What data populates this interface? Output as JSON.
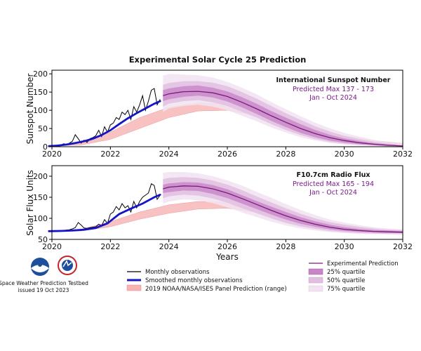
{
  "figure": {
    "title": "Experimental Solar Cycle 25 Prediction",
    "xlabel": "Years",
    "footer": {
      "line1": "Space Weather Prediction Testbed",
      "line2": "issued 19 Oct 2023"
    },
    "legend": {
      "monthly": "Monthly observations",
      "smoothed": "Smoothed monthly observations",
      "panel": "2019 NOAA/NASA/ISES Panel Prediction (range)",
      "experimental": "Experimental Prediction",
      "q25": "25% quartile",
      "q50": "50% quartile",
      "q75": "75% quartile"
    },
    "colors": {
      "monthly": "#000000",
      "smoothed": "#1515c8",
      "panel_fill": "#f7b3b3",
      "experimental": "#7a1a7a",
      "q25": "#c886c8",
      "q50": "#e0bfe0",
      "q75": "#f2e3f2"
    }
  },
  "chart_data": [
    {
      "type": "line",
      "ylabel": "Sunspot Number",
      "xlim": [
        2020,
        2032
      ],
      "ylim": [
        0,
        210
      ],
      "xticks": [
        2020,
        2022,
        2024,
        2026,
        2028,
        2030,
        2032
      ],
      "yticks": [
        0,
        50,
        100,
        150,
        200
      ],
      "annotation": {
        "heading": "International Sunspot Number",
        "line1": "Predicted Max 137 - 173",
        "line2": "Jan - Oct 2024"
      },
      "monthly": {
        "x": [
          2019.9,
          2020.0,
          2020.1,
          2020.2,
          2020.3,
          2020.4,
          2020.5,
          2020.6,
          2020.7,
          2020.8,
          2020.9,
          2021.0,
          2021.1,
          2021.2,
          2021.3,
          2021.4,
          2021.5,
          2021.6,
          2021.7,
          2021.8,
          2021.9,
          2022.0,
          2022.1,
          2022.2,
          2022.3,
          2022.4,
          2022.5,
          2022.6,
          2022.7,
          2022.8,
          2022.9,
          2023.0,
          2023.1,
          2023.2,
          2023.3,
          2023.4,
          2023.5,
          2023.6,
          2023.7
        ],
        "y": [
          1,
          3,
          2,
          5,
          4,
          8,
          6,
          10,
          15,
          33,
          22,
          10,
          18,
          12,
          22,
          25,
          30,
          45,
          28,
          55,
          40,
          60,
          65,
          80,
          75,
          95,
          88,
          100,
          75,
          110,
          95,
          115,
          140,
          100,
          125,
          155,
          160,
          115,
          130
        ]
      },
      "smoothed": {
        "x": [
          2019.9,
          2020.2,
          2020.5,
          2020.8,
          2021.1,
          2021.4,
          2021.7,
          2022.0,
          2022.3,
          2022.6,
          2022.9,
          2023.2,
          2023.5,
          2023.7
        ],
        "y": [
          1.5,
          3,
          6,
          10,
          15,
          22,
          32,
          45,
          62,
          78,
          92,
          105,
          118,
          125
        ]
      },
      "panel_range": {
        "x": [
          2020.0,
          2021.0,
          2022.0,
          2023.0,
          2024.0,
          2025.0,
          2026.0,
          2027.0,
          2028.0,
          2029.0,
          2030.0,
          2031.0,
          2032.0
        ],
        "lower": [
          2,
          5,
          20,
          50,
          80,
          98,
          100,
          85,
          60,
          37,
          20,
          10,
          5
        ],
        "upper": [
          3,
          12,
          40,
          80,
          108,
          120,
          118,
          100,
          75,
          50,
          30,
          17,
          9
        ]
      },
      "experimental": {
        "x": [
          2023.8,
          2024.0,
          2024.5,
          2025.0,
          2025.5,
          2026.0,
          2026.5,
          2027.0,
          2027.5,
          2028.0,
          2028.5,
          2029.0,
          2029.5,
          2030.0,
          2030.5,
          2031.0,
          2031.5,
          2032.0
        ],
        "y": [
          140,
          145,
          151,
          152,
          148,
          138,
          122,
          104,
          85,
          67,
          50,
          36,
          25,
          17,
          11,
          7,
          4,
          2
        ],
        "q25": [
          [
            125,
            155
          ],
          [
            130,
            160
          ],
          [
            137,
            166
          ],
          [
            140,
            168
          ],
          [
            135,
            162
          ],
          [
            124,
            152
          ],
          [
            108,
            136
          ],
          [
            90,
            118
          ],
          [
            71,
            98
          ],
          [
            54,
            80
          ],
          [
            38,
            62
          ],
          [
            26,
            46
          ],
          [
            17,
            33
          ],
          [
            11,
            23
          ],
          [
            7,
            16
          ],
          [
            4,
            10
          ],
          [
            2,
            6
          ],
          [
            1,
            3
          ]
        ],
        "q50": [
          [
            110,
            170
          ],
          [
            118,
            175
          ],
          [
            125,
            180
          ],
          [
            128,
            180
          ],
          [
            122,
            176
          ],
          [
            112,
            166
          ],
          [
            96,
            150
          ],
          [
            80,
            132
          ],
          [
            62,
            112
          ],
          [
            46,
            92
          ],
          [
            32,
            74
          ],
          [
            21,
            56
          ],
          [
            13,
            42
          ],
          [
            8,
            30
          ],
          [
            5,
            21
          ],
          [
            3,
            14
          ],
          [
            1,
            9
          ],
          [
            1,
            5
          ]
        ],
        "q75": [
          [
            95,
            195
          ],
          [
            105,
            200
          ],
          [
            112,
            198
          ],
          [
            115,
            196
          ],
          [
            110,
            190
          ],
          [
            100,
            178
          ],
          [
            85,
            162
          ],
          [
            70,
            144
          ],
          [
            53,
            123
          ],
          [
            39,
            103
          ],
          [
            26,
            84
          ],
          [
            17,
            66
          ],
          [
            10,
            51
          ],
          [
            6,
            38
          ],
          [
            4,
            28
          ],
          [
            2,
            19
          ],
          [
            1,
            13
          ],
          [
            1,
            9
          ]
        ]
      }
    },
    {
      "type": "line",
      "ylabel": "Solar Flux Units",
      "xlim": [
        2020,
        2032
      ],
      "ylim": [
        50,
        225
      ],
      "xticks": [
        2020,
        2022,
        2024,
        2026,
        2028,
        2030,
        2032
      ],
      "yticks": [
        50,
        100,
        150,
        200
      ],
      "annotation": {
        "heading": "F10.7cm Radio Flux",
        "line1": "Predicted Max 165 - 194",
        "line2": "Jan - Oct 2024"
      },
      "monthly": {
        "x": [
          2019.9,
          2020.0,
          2020.1,
          2020.2,
          2020.3,
          2020.4,
          2020.5,
          2020.6,
          2020.7,
          2020.8,
          2020.9,
          2021.0,
          2021.1,
          2021.2,
          2021.3,
          2021.4,
          2021.5,
          2021.6,
          2021.7,
          2021.8,
          2021.9,
          2022.0,
          2022.1,
          2022.2,
          2022.3,
          2022.4,
          2022.5,
          2022.6,
          2022.7,
          2022.8,
          2022.9,
          2023.0,
          2023.1,
          2023.2,
          2023.3,
          2023.4,
          2023.5,
          2023.6,
          2023.7
        ],
        "y": [
          70,
          70,
          71,
          70,
          70,
          71,
          72,
          73,
          75,
          78,
          90,
          84,
          77,
          76,
          78,
          79,
          80,
          86,
          82,
          97,
          88,
          110,
          115,
          128,
          120,
          135,
          125,
          130,
          115,
          140,
          125,
          140,
          150,
          155,
          160,
          182,
          178,
          145,
          155
        ]
      },
      "smoothed": {
        "x": [
          2019.9,
          2020.3,
          2020.7,
          2021.1,
          2021.5,
          2021.9,
          2022.3,
          2022.7,
          2023.1,
          2023.5,
          2023.7
        ],
        "y": [
          69.5,
          70,
          71,
          73,
          77,
          88,
          110,
          123,
          135,
          150,
          156
        ]
      },
      "panel_range": {
        "x": [
          2020.0,
          2021.0,
          2022.0,
          2023.0,
          2024.0,
          2025.0,
          2026.0,
          2027.0,
          2028.0,
          2029.0,
          2030.0,
          2031.0,
          2032.0
        ],
        "lower": [
          69,
          70,
          80,
          98,
          112,
          122,
          124,
          114,
          98,
          85,
          75,
          70,
          67
        ],
        "upper": [
          71,
          74,
          92,
          115,
          132,
          140,
          138,
          124,
          106,
          91,
          80,
          73,
          69
        ]
      },
      "experimental": {
        "x": [
          2023.8,
          2024.0,
          2024.5,
          2025.0,
          2025.5,
          2026.0,
          2026.5,
          2027.0,
          2027.5,
          2028.0,
          2028.5,
          2029.0,
          2029.5,
          2030.0,
          2030.5,
          2031.0,
          2031.5,
          2032.0
        ],
        "y": [
          170,
          174,
          177,
          176,
          170,
          160,
          147,
          133,
          119,
          106,
          95,
          86,
          79,
          74,
          71,
          69,
          68,
          67
        ],
        "q25": [
          [
            160,
            180
          ],
          [
            162,
            183
          ],
          [
            166,
            186
          ],
          [
            165,
            185
          ],
          [
            158,
            179
          ],
          [
            148,
            169
          ],
          [
            135,
            155
          ],
          [
            122,
            141
          ],
          [
            109,
            128
          ],
          [
            97,
            115
          ],
          [
            87,
            103
          ],
          [
            80,
            93
          ],
          [
            74,
            85
          ],
          [
            70,
            79
          ],
          [
            68,
            75
          ],
          [
            66,
            72
          ],
          [
            65,
            71
          ],
          [
            65,
            70
          ]
        ],
        "q50": [
          [
            148,
            193
          ],
          [
            152,
            196
          ],
          [
            156,
            198
          ],
          [
            154,
            196
          ],
          [
            147,
            190
          ],
          [
            137,
            180
          ],
          [
            124,
            167
          ],
          [
            112,
            152
          ],
          [
            100,
            138
          ],
          [
            89,
            124
          ],
          [
            81,
            111
          ],
          [
            75,
            100
          ],
          [
            70,
            91
          ],
          [
            67,
            85
          ],
          [
            65,
            80
          ],
          [
            64,
            76
          ],
          [
            63,
            73
          ],
          [
            63,
            72
          ]
        ],
        "q75": [
          [
            135,
            208
          ],
          [
            140,
            210
          ],
          [
            145,
            210
          ],
          [
            143,
            207
          ],
          [
            136,
            200
          ],
          [
            126,
            190
          ],
          [
            114,
            178
          ],
          [
            103,
            163
          ],
          [
            92,
            149
          ],
          [
            83,
            134
          ],
          [
            76,
            120
          ],
          [
            71,
            108
          ],
          [
            67,
            97
          ],
          [
            65,
            90
          ],
          [
            63,
            84
          ],
          [
            62,
            79
          ],
          [
            62,
            76
          ],
          [
            61,
            74
          ]
        ]
      }
    }
  ]
}
